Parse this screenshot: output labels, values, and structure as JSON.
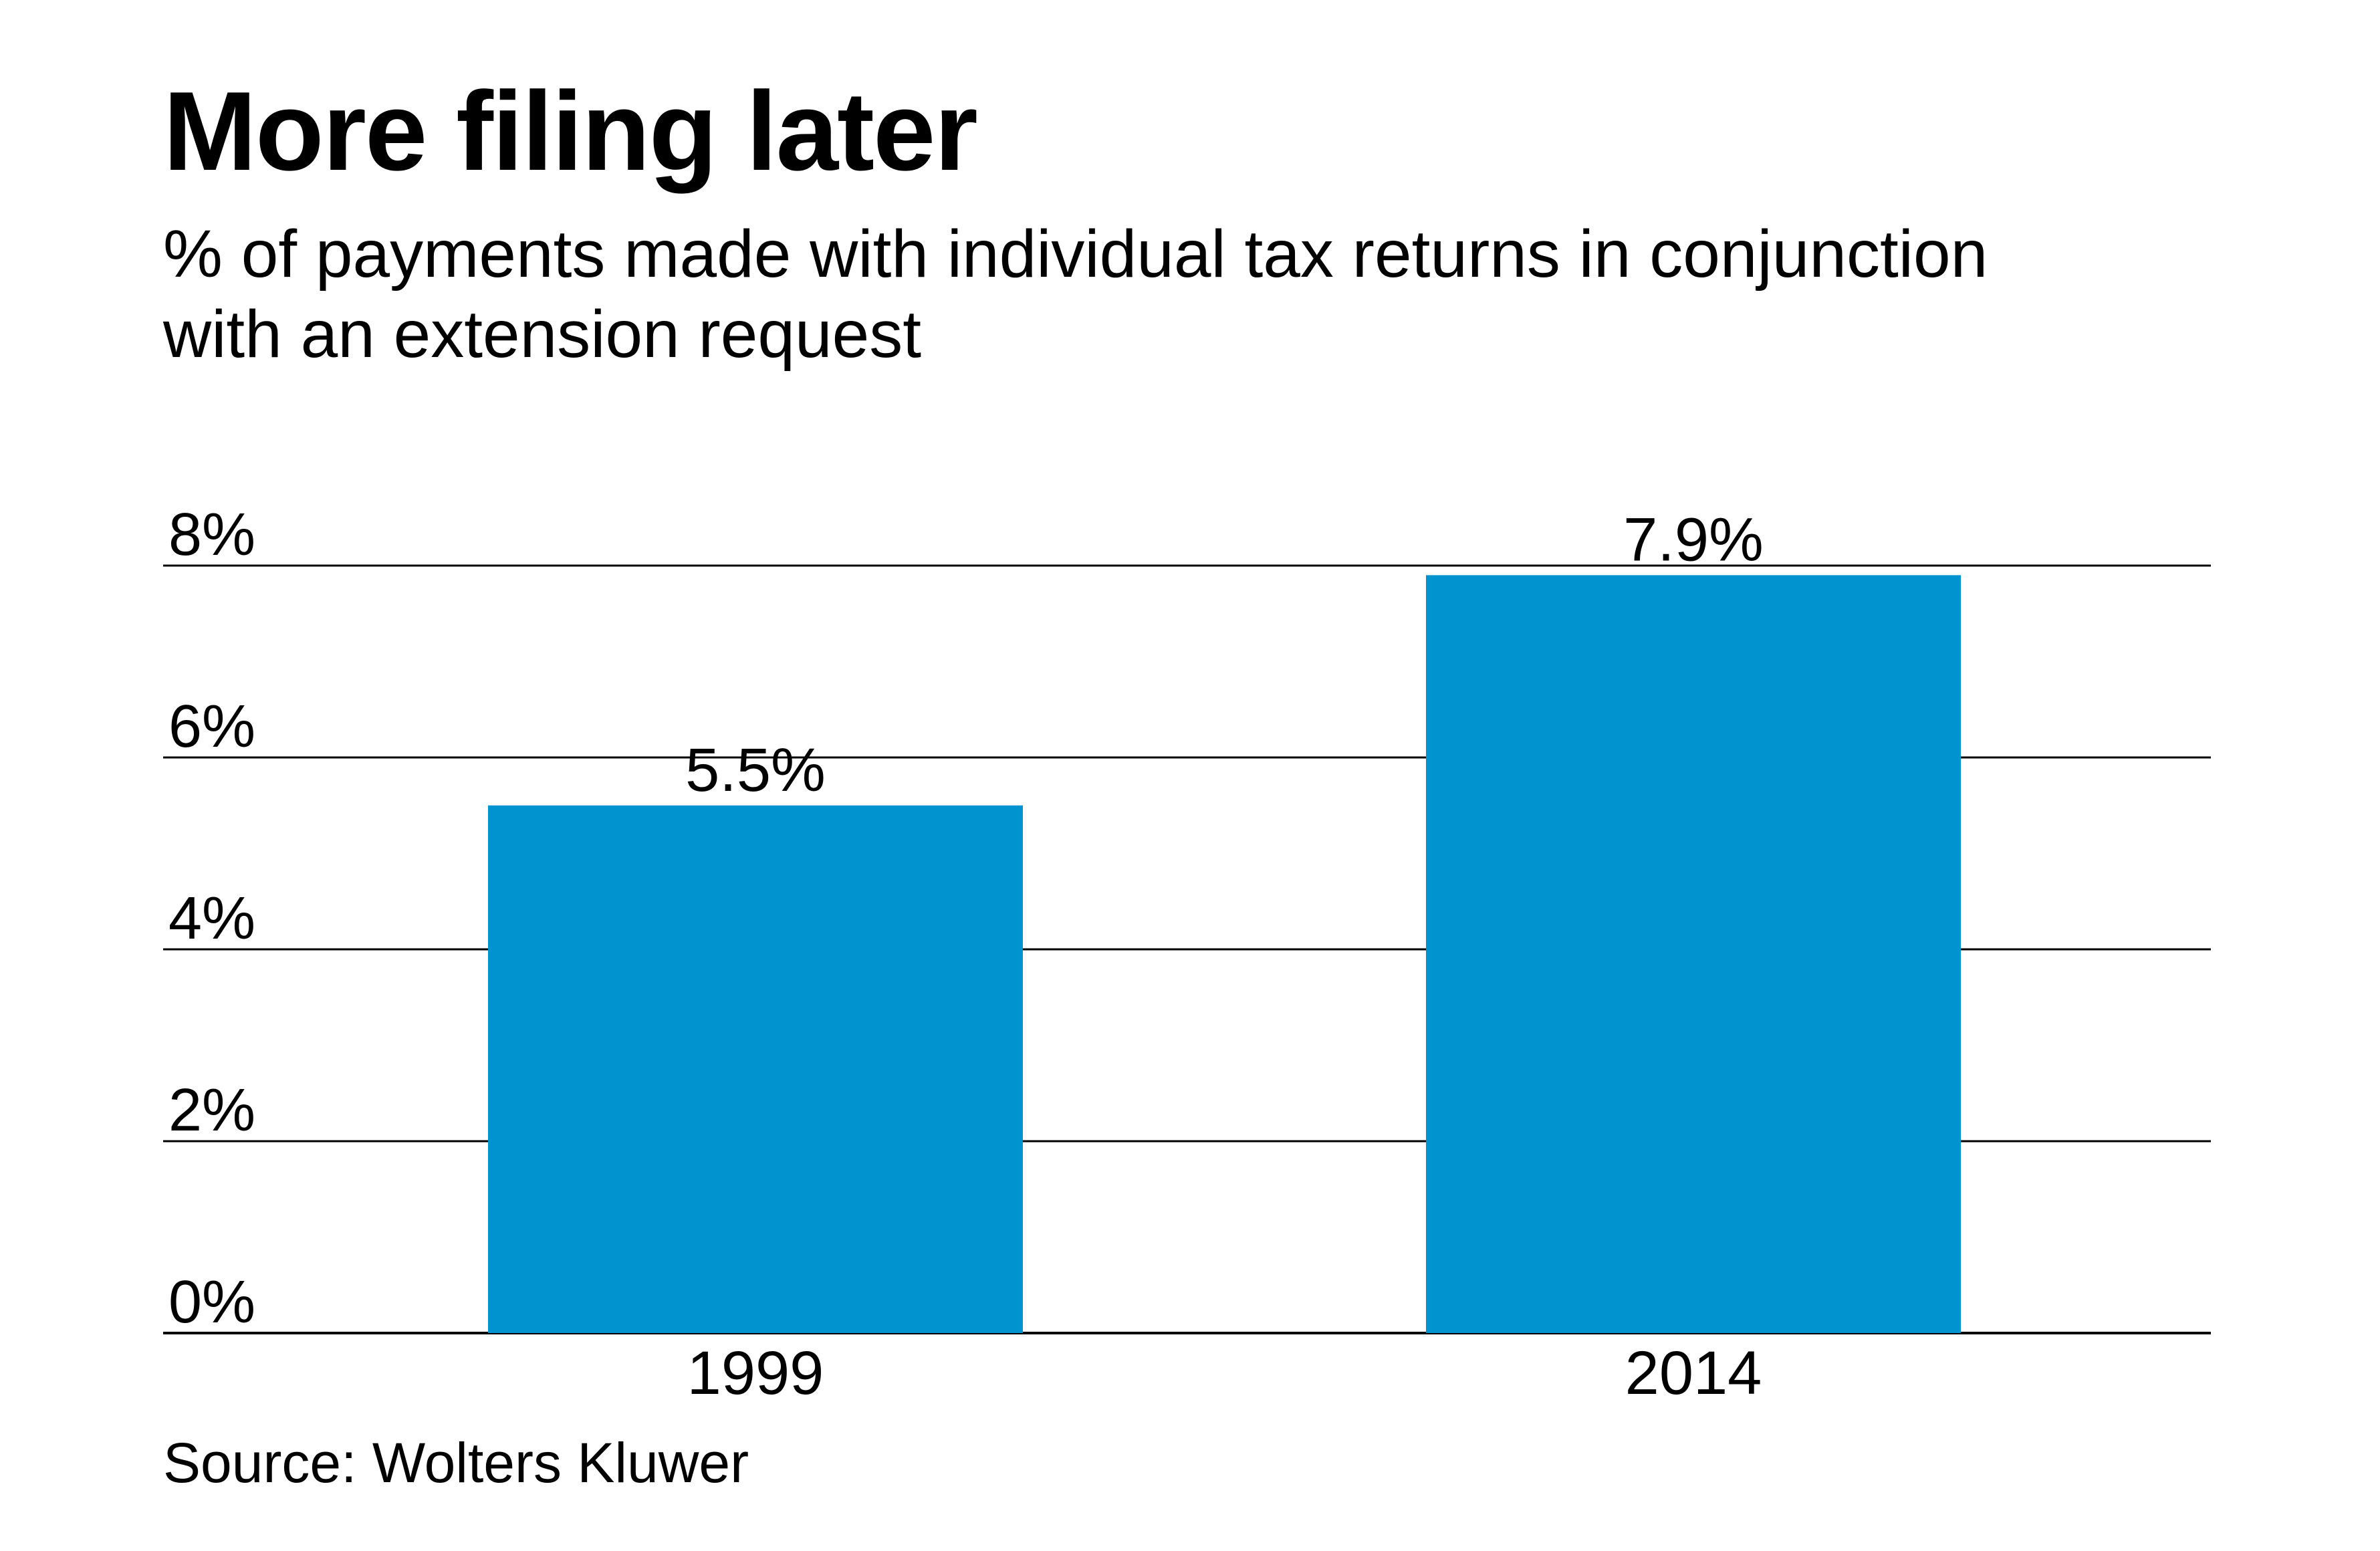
{
  "chart_data": {
    "type": "bar",
    "title": "More filing later",
    "subtitle": "% of payments made with individual tax returns in conjunction with an extension request",
    "categories": [
      "1999",
      "2014"
    ],
    "values": [
      5.5,
      7.9
    ],
    "value_labels": [
      "5.5%",
      "7.9%"
    ],
    "xlabel": "",
    "ylabel": "",
    "ylim": [
      0,
      8
    ],
    "yticks": [
      0,
      2,
      4,
      6,
      8
    ],
    "ytick_labels": [
      "0%",
      "2%",
      "4%",
      "6%",
      "8%"
    ],
    "grid": true,
    "bar_color": "#0093d0",
    "source": "Source: Wolters Kluwer"
  }
}
